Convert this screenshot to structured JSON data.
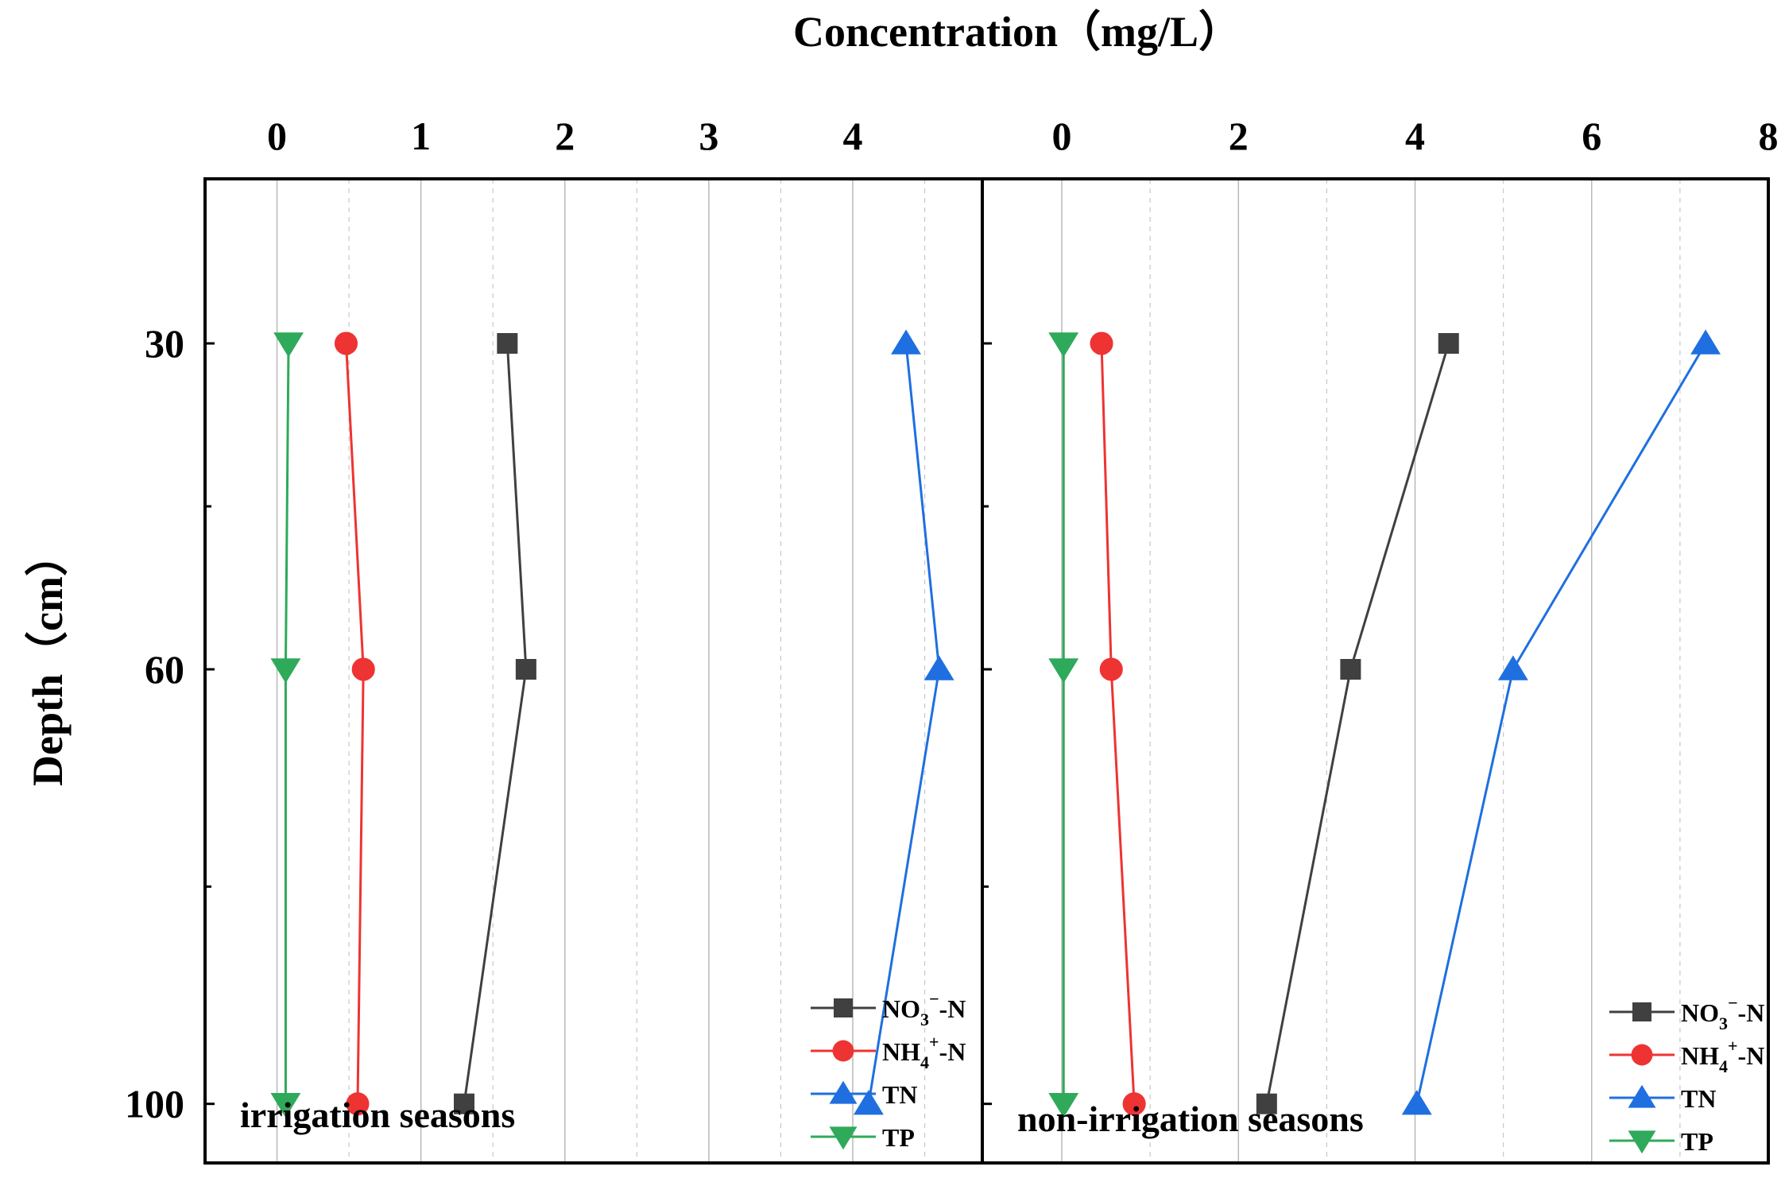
{
  "figure": {
    "xlabel": "Concentration（mg/L）",
    "ylabel": "Depth（cm）"
  },
  "colors": {
    "NO3": "#404040",
    "NH4": "#ee3333",
    "TN": "#1f6fe0",
    "TP": "#2eaa5a"
  },
  "legend_labels": {
    "NO3": {
      "base": "NO",
      "sub": "3",
      "sup": "−",
      "tail": "-N"
    },
    "NH4": {
      "base": "NH",
      "sub": "4",
      "sup": "+",
      "tail": "-N"
    },
    "TN": {
      "base": "TN"
    },
    "TP": {
      "base": "TP"
    }
  },
  "chart_data": [
    {
      "type": "line",
      "panel_label": "irrigation seasons",
      "depth": [
        30,
        60,
        100
      ],
      "xlim": [
        -0.5,
        4.9
      ],
      "xticks": [
        0,
        1,
        2,
        3,
        4
      ],
      "tick_labels": [
        "0",
        "1",
        "2",
        "3",
        "4"
      ],
      "ylim": [
        0,
        120
      ],
      "yticks": [
        30,
        60,
        100
      ],
      "ytick_labels": [
        "30",
        "60",
        "100"
      ],
      "legend_position": "bottom-right",
      "series": [
        {
          "key": "NO3",
          "name": "NO3−-N",
          "marker": "square",
          "values": [
            1.6,
            1.73,
            1.3
          ]
        },
        {
          "key": "NH4",
          "name": "NH4+-N",
          "marker": "circle",
          "values": [
            0.48,
            0.6,
            0.56
          ]
        },
        {
          "key": "TN",
          "name": "TN",
          "marker": "triangle-up",
          "values": [
            4.37,
            4.6,
            4.11
          ]
        },
        {
          "key": "TP",
          "name": "TP",
          "marker": "triangle-down",
          "values": [
            0.08,
            0.06,
            0.06
          ]
        }
      ]
    },
    {
      "type": "line",
      "panel_label": "non-irrigation seasons",
      "depth": [
        30,
        60,
        100
      ],
      "xlim": [
        -0.9,
        8.0
      ],
      "xticks": [
        0,
        2,
        4,
        6,
        8
      ],
      "tick_labels": [
        "0",
        "2",
        "4",
        "6",
        "8"
      ],
      "ylim": [
        0,
        120
      ],
      "yticks": [
        30,
        60,
        100
      ],
      "ytick_labels": [
        "30",
        "60",
        "100"
      ],
      "legend_position": "bottom-right",
      "series": [
        {
          "key": "NO3",
          "name": "NO3−-N",
          "marker": "square",
          "values": [
            4.38,
            3.27,
            2.32
          ]
        },
        {
          "key": "NH4",
          "name": "NH4+-N",
          "marker": "circle",
          "values": [
            0.45,
            0.56,
            0.82
          ]
        },
        {
          "key": "TN",
          "name": "TN",
          "marker": "triangle-up",
          "values": [
            7.29,
            5.11,
            4.02
          ]
        },
        {
          "key": "TP",
          "name": "TP",
          "marker": "triangle-down",
          "values": [
            0.02,
            0.02,
            0.02
          ]
        }
      ]
    }
  ]
}
